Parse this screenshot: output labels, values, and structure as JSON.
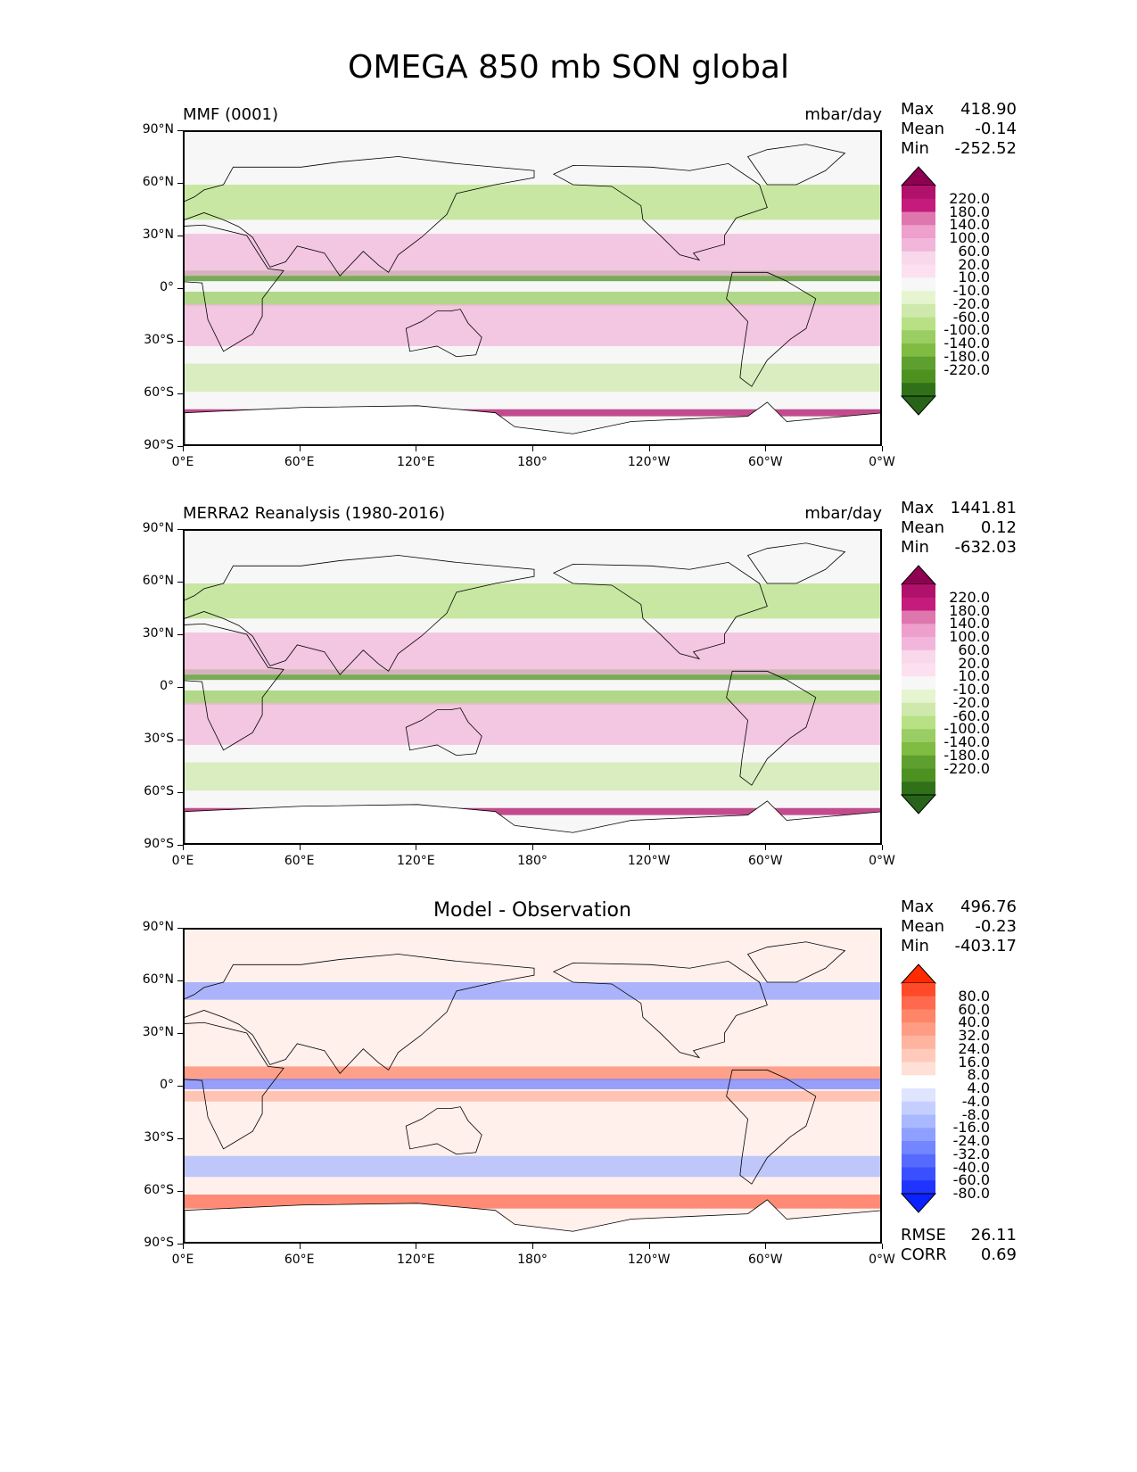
{
  "title": "OMEGA 850 mb SON global",
  "panels": [
    {
      "id": "model",
      "left_title": "MMF (0001)",
      "center_title": "",
      "units": "mbar/day",
      "stats": [
        [
          "Max",
          "418.90"
        ],
        [
          "Mean",
          "-0.14"
        ],
        [
          "Min",
          "-252.52"
        ]
      ],
      "footer_stats": [],
      "palette": "pig"
    },
    {
      "id": "obs",
      "left_title": "MERRA2 Reanalysis (1980-2016)",
      "center_title": "",
      "units": "mbar/day",
      "stats": [
        [
          "Max",
          "1441.81"
        ],
        [
          "Mean",
          "0.12"
        ],
        [
          "Min",
          "-632.03"
        ]
      ],
      "footer_stats": [],
      "palette": "pig"
    },
    {
      "id": "diff",
      "left_title": "",
      "center_title": "Model - Observation",
      "units": "",
      "stats": [
        [
          "Max",
          "496.76"
        ],
        [
          "Mean",
          "-0.23"
        ],
        [
          "Min",
          "-403.17"
        ]
      ],
      "footer_stats": [
        [
          "RMSE",
          "26.11"
        ],
        [
          "CORR",
          "0.69"
        ]
      ],
      "palette": "bwr"
    }
  ],
  "lat_labels": [
    "90°N",
    "60°N",
    "30°N",
    "0°",
    "30°S",
    "60°S",
    "90°S"
  ],
  "lon_labels": [
    "0°E",
    "60°E",
    "120°E",
    "180°",
    "120°W",
    "60°W",
    "0°W"
  ],
  "colorbars": {
    "pig": {
      "labels": [
        "220.0",
        "180.0",
        "140.0",
        "100.0",
        "60.0",
        "20.0",
        "10.0",
        "-10.0",
        "-20.0",
        "-60.0",
        "-100.0",
        "-140.0",
        "-180.0",
        "-220.0"
      ],
      "colors": [
        "#8e0152",
        "#b0116a",
        "#c51b7d",
        "#de77ae",
        "#ee9fcb",
        "#f1b6da",
        "#f8d8ea",
        "#fde0ef",
        "#f7f7f7",
        "#e6f5d0",
        "#cfe9ad",
        "#b8e186",
        "#9acd63",
        "#7fbc41",
        "#5ea030",
        "#4d9221",
        "#2f7018",
        "#276419"
      ]
    },
    "bwr": {
      "labels": [
        "80.0",
        "60.0",
        "40.0",
        "32.0",
        "24.0",
        "16.0",
        "8.0",
        "4.0",
        "-4.0",
        "-8.0",
        "-16.0",
        "-24.0",
        "-32.0",
        "-40.0",
        "-60.0",
        "-80.0"
      ],
      "colors": [
        "#ff2a00",
        "#ff4a2a",
        "#ff6a4f",
        "#ff8569",
        "#ff9d84",
        "#ffb4a0",
        "#ffcabb",
        "#ffe0d6",
        "#ffffff",
        "#dfe4ff",
        "#c5cfff",
        "#aab8ff",
        "#8f9fff",
        "#7385ff",
        "#566aff",
        "#3a4fff",
        "#1f35ff",
        "#0a22ff"
      ]
    }
  }
}
